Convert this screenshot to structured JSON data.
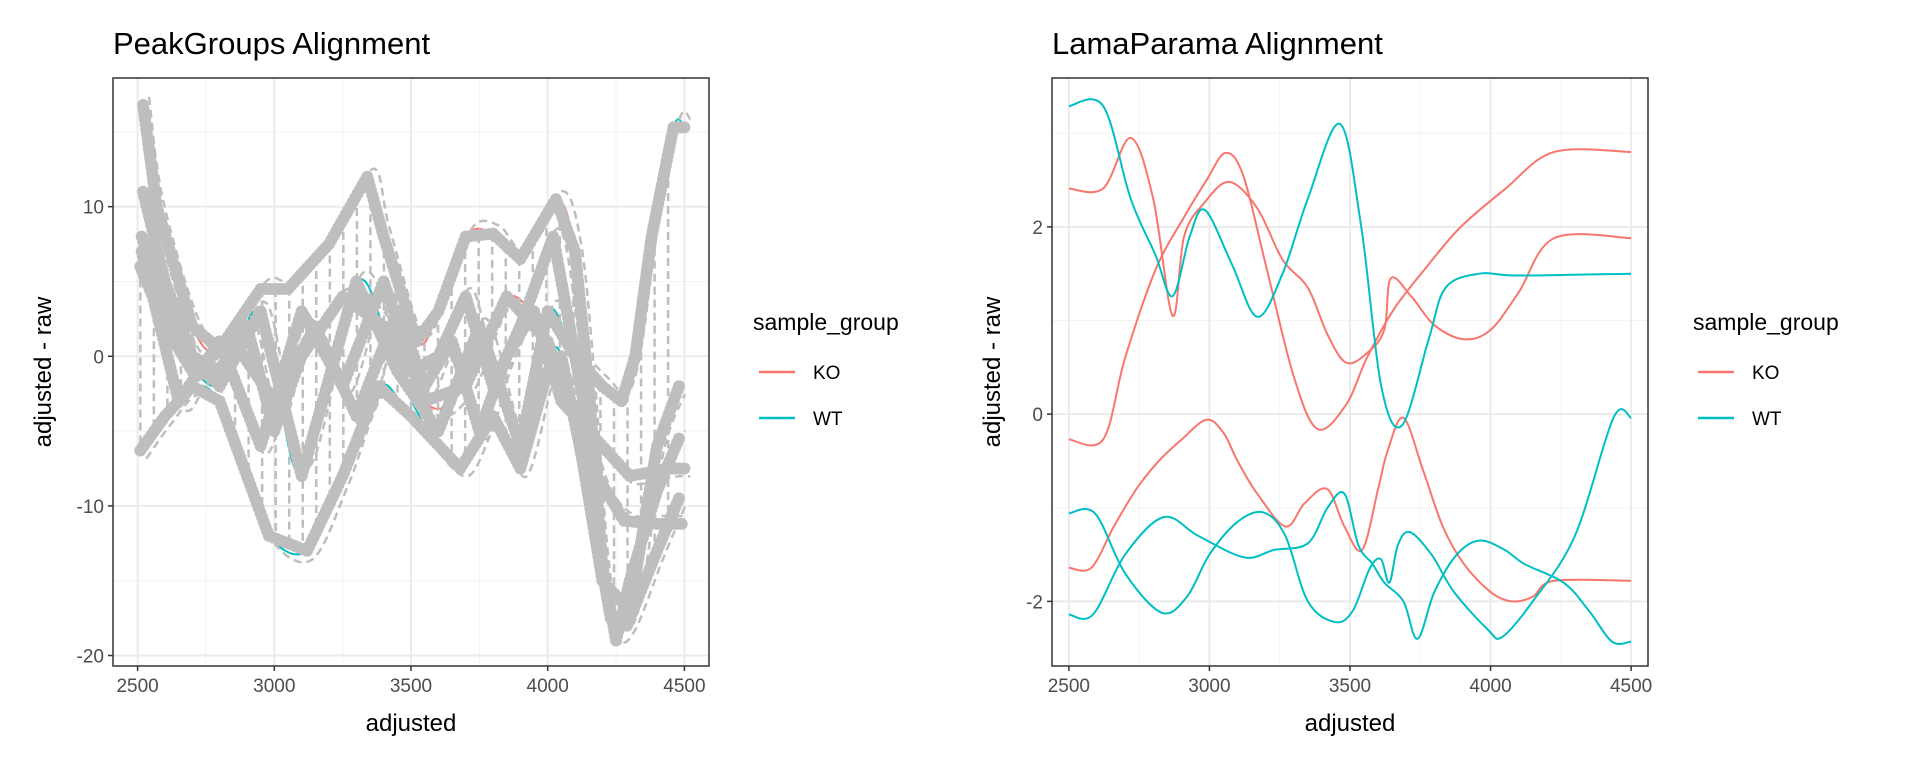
{
  "chart_data": [
    {
      "type": "line",
      "title": "PeakGroups Alignment",
      "xlabel": "adjusted",
      "ylabel": "adjusted - raw",
      "xlim": [
        2410,
        4590
      ],
      "ylim": [
        -20.7,
        18.6
      ],
      "xticks": [
        "2500",
        "3000",
        "3500",
        "4000",
        "4500"
      ],
      "xtick_values": [
        2500,
        3000,
        3500,
        4000,
        4500
      ],
      "yticks": [
        "-20",
        "-10",
        "0",
        "10"
      ],
      "ytick_values": [
        -20,
        -10,
        0,
        10
      ],
      "grid": true,
      "legend": {
        "title": "sample_group",
        "placement": "right",
        "entries": [
          "KO",
          "WT"
        ]
      },
      "colors": {
        "KO": "#F8766D",
        "WT": "#00BFC4",
        "peak_groups": "#BEBEBE"
      },
      "series": [
        {
          "group": "KO",
          "x": [
            2520,
            2570,
            2700,
            2800,
            2950,
            3050,
            3200,
            3340,
            3400,
            3520,
            3600,
            3700,
            3800,
            3900,
            4030,
            4100,
            4150,
            4200,
            4250,
            4300,
            4400,
            4480
          ],
          "y": [
            16.8,
            10,
            2,
            0.5,
            4.5,
            4.5,
            7.5,
            12,
            8,
            1,
            3,
            8,
            8.2,
            6.5,
            10.5,
            7,
            -2,
            -14,
            -19,
            -15,
            -9,
            -5.5
          ]
        },
        {
          "group": "WT",
          "x": [
            2510,
            2600,
            2700,
            2800,
            2900,
            2980,
            3120,
            3250,
            3380,
            3500,
            3680,
            3800,
            3900,
            4000,
            4050,
            4150,
            4230,
            4290,
            4400,
            4480
          ],
          "y": [
            -6.3,
            -4,
            -2,
            -3,
            -8,
            -12,
            -13,
            -8,
            -2,
            -4,
            -7.5,
            -4,
            -7.5,
            -1,
            0,
            -9,
            -17.5,
            -18,
            -13,
            -9.5
          ]
        },
        {
          "group": "KO",
          "x": [
            2520,
            2600,
            2700,
            2800,
            2900,
            3000,
            3100,
            3250,
            3400,
            3500,
            3600,
            3700,
            3800,
            3900,
            4020,
            4100,
            4180,
            4280,
            4400,
            4490
          ],
          "y": [
            11,
            5,
            0,
            -1,
            2,
            -5,
            0,
            4,
            2,
            -1,
            0,
            4,
            -2,
            2,
            8,
            0,
            -8,
            -11,
            -11.2,
            -11.2
          ]
        },
        {
          "group": "WT",
          "x": [
            2510,
            2600,
            2700,
            2850,
            3000,
            3150,
            3300,
            3450,
            3550,
            3650,
            3750,
            3850,
            3950,
            4050,
            4150,
            4250,
            4300,
            4450,
            4500
          ],
          "y": [
            6,
            2,
            -1,
            1,
            -3,
            2,
            -4,
            3,
            -2,
            1,
            -5,
            0,
            3,
            -3,
            -5,
            -7,
            -8,
            -7.5,
            -7.5
          ]
        },
        {
          "group": "WT",
          "x": [
            2515,
            2650,
            2800,
            2950,
            3100,
            3300,
            3450,
            3600,
            3750,
            3900,
            4000,
            4100,
            4200,
            4270,
            4320,
            4380,
            4460,
            4500
          ],
          "y": [
            8,
            1,
            -2,
            3,
            -8,
            5,
            -1,
            -5,
            2,
            -6,
            3,
            0,
            -2,
            -3,
            0,
            8,
            15.3,
            15.3
          ]
        },
        {
          "group": "KO",
          "x": [
            2515,
            2650,
            2800,
            2950,
            3100,
            3250,
            3400,
            3550,
            3700,
            3850,
            4000,
            4100,
            4200,
            4300,
            4400,
            4480
          ],
          "y": [
            7,
            -3,
            1,
            -6,
            3,
            -2,
            5,
            -3,
            -2,
            4,
            1,
            -4,
            -15,
            -17,
            -6,
            -2
          ]
        }
      ]
    },
    {
      "type": "line",
      "title": "LamaParama Alignment",
      "xlabel": "adjusted",
      "ylabel": "adjusted - raw",
      "xlim": [
        2440,
        4560
      ],
      "ylim": [
        -2.69,
        3.59
      ],
      "xticks": [
        "2500",
        "3000",
        "3500",
        "4000",
        "4500"
      ],
      "xtick_values": [
        2500,
        3000,
        3500,
        4000,
        4500
      ],
      "yticks": [
        "-2",
        "0",
        "2"
      ],
      "ytick_values": [
        -2,
        0,
        2
      ],
      "grid": true,
      "legend": {
        "title": "sample_group",
        "placement": "right",
        "entries": [
          "KO",
          "WT"
        ]
      },
      "colors": {
        "KO": "#F8766D",
        "WT": "#00BFC4"
      },
      "series": [
        {
          "group": "KO",
          "x": [
            2500,
            2622,
            2720,
            2800,
            2869,
            2910,
            2980,
            3070,
            3170,
            3260,
            3350,
            3420,
            3486,
            3560,
            3622,
            3645,
            3720,
            3800,
            3905,
            4000,
            4100,
            4226,
            4500
          ],
          "y": [
            2.41,
            2.41,
            2.95,
            2.3,
            1.05,
            1.9,
            2.25,
            2.48,
            2.2,
            1.65,
            1.35,
            0.85,
            0.55,
            0.65,
            0.9,
            1.45,
            1.25,
            0.95,
            0.8,
            0.9,
            1.3,
            1.88,
            1.88
          ]
        },
        {
          "group": "KO",
          "x": [
            2500,
            2622,
            2700,
            2808,
            2909,
            2990,
            3057,
            3120,
            3200,
            3300,
            3385,
            3486,
            3560,
            3656,
            3780,
            3894,
            4050,
            4226,
            4500
          ],
          "y": [
            -0.27,
            -0.27,
            0.6,
            1.54,
            2.1,
            2.5,
            2.79,
            2.55,
            1.6,
            0.4,
            -0.16,
            0.1,
            0.6,
            1.12,
            1.6,
            2.0,
            2.4,
            2.8,
            2.8
          ]
        },
        {
          "group": "KO",
          "x": [
            2500,
            2580,
            2660,
            2740,
            2820,
            2898,
            2989,
            3050,
            3100,
            3170,
            3271,
            3339,
            3419,
            3480,
            3543,
            3600,
            3633,
            3690,
            3760,
            3830,
            3905,
            4000,
            4075,
            4150,
            4226,
            4500
          ],
          "y": [
            -1.64,
            -1.64,
            -1.2,
            -0.8,
            -0.5,
            -0.28,
            -0.06,
            -0.2,
            -0.5,
            -0.85,
            -1.2,
            -0.95,
            -0.8,
            -1.2,
            -1.45,
            -0.8,
            -0.4,
            -0.04,
            -0.6,
            -1.2,
            -1.6,
            -1.9,
            -2.0,
            -1.95,
            -1.78,
            -1.78
          ]
        },
        {
          "group": "WT",
          "x": [
            2500,
            2622,
            2720,
            2808,
            2869,
            2930,
            2984,
            3080,
            3170,
            3260,
            3350,
            3464,
            3540,
            3611,
            3685,
            3780,
            3840,
            3960,
            4100,
            4500
          ],
          "y": [
            3.29,
            3.29,
            2.3,
            1.7,
            1.26,
            1.9,
            2.18,
            1.6,
            1.04,
            1.5,
            2.3,
            3.1,
            2.0,
            0.3,
            -0.12,
            0.8,
            1.35,
            1.5,
            1.48,
            1.5
          ]
        },
        {
          "group": "WT",
          "x": [
            2500,
            2593,
            2700,
            2830,
            2920,
            3000,
            3100,
            3192,
            3270,
            3350,
            3446,
            3510,
            3570,
            3610,
            3640,
            3670,
            3713,
            3790,
            3870,
            3990,
            4041,
            4150,
            4300,
            4437,
            4500
          ],
          "y": [
            -1.06,
            -1.06,
            -1.7,
            -2.12,
            -1.95,
            -1.5,
            -1.15,
            -1.05,
            -1.3,
            -2.0,
            -2.22,
            -2.1,
            -1.65,
            -1.55,
            -1.8,
            -1.4,
            -1.26,
            -1.5,
            -1.9,
            -2.3,
            -2.38,
            -2.0,
            -1.3,
            -0.04,
            -0.04
          ]
        },
        {
          "group": "WT",
          "x": [
            2500,
            2586,
            2700,
            2837,
            2960,
            3124,
            3230,
            3350,
            3420,
            3480,
            3530,
            3580,
            3622,
            3690,
            3740,
            3800,
            3880,
            3961,
            4050,
            4120,
            4260,
            4350,
            4432,
            4500
          ],
          "y": [
            -2.14,
            -2.14,
            -1.5,
            -1.1,
            -1.3,
            -1.53,
            -1.45,
            -1.38,
            -1.0,
            -0.85,
            -1.4,
            -1.6,
            -1.8,
            -2.0,
            -2.4,
            -1.9,
            -1.5,
            -1.35,
            -1.45,
            -1.6,
            -1.8,
            -2.1,
            -2.43,
            -2.43
          ]
        }
      ]
    }
  ]
}
